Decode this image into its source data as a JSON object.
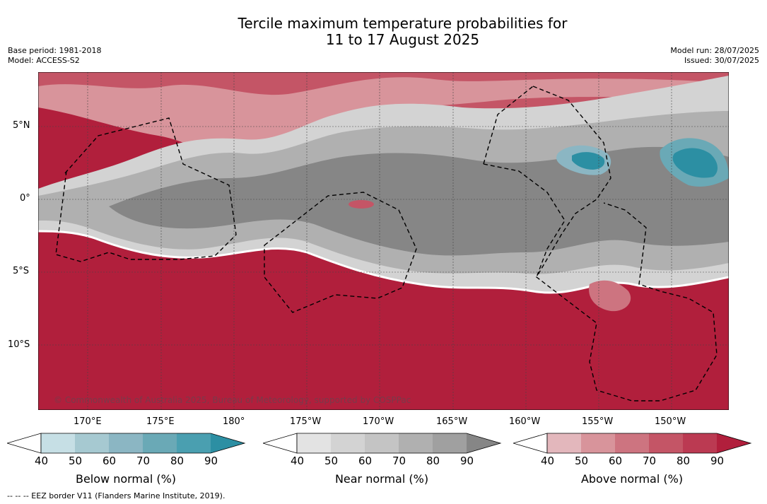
{
  "title": {
    "line1": "Tercile maximum temperature probabilities for",
    "line2": "11 to 17 August 2025"
  },
  "meta_left": {
    "base_period": "Base period: 1981-2018",
    "model": "Model: ACCESS-S2"
  },
  "meta_right": {
    "model_run": "Model run: 28/07/2025",
    "issued": "Issued: 30/07/2025"
  },
  "map": {
    "lat_ticks": [
      "5°N",
      "0°",
      "5°S",
      "10°S"
    ],
    "lon_ticks": [
      "170°E",
      "175°E",
      "180°",
      "175°W",
      "170°W",
      "165°W",
      "160°W",
      "155°W",
      "150°W"
    ],
    "copyright": "© Commonwealth of Australia 2025, Bureau of Meteorology, supported by COSPPac",
    "fill_colors": {
      "below": [
        "#c6dfe5",
        "#a6c9d1",
        "#8bb6c3",
        "#6aa9b6",
        "#4a9fb0",
        "#2c8fa3"
      ],
      "near": [
        "#e3e3e3",
        "#d3d3d3",
        "#c4c4c4",
        "#b0b0b0",
        "#a0a0a0",
        "#868686"
      ],
      "above": [
        "#e3b7bc",
        "#d8949b",
        "#cd7480",
        "#c45566",
        "#bb3a52",
        "#b11f3c"
      ]
    }
  },
  "colorbars": [
    {
      "id": "below",
      "label": "Below normal (%)",
      "ticks": [
        "40",
        "50",
        "60",
        "70",
        "80",
        "90"
      ]
    },
    {
      "id": "near",
      "label": "Near normal (%)",
      "ticks": [
        "40",
        "50",
        "60",
        "70",
        "80",
        "90"
      ]
    },
    {
      "id": "above",
      "label": "Above normal (%)",
      "ticks": [
        "40",
        "50",
        "60",
        "70",
        "80",
        "90"
      ]
    }
  ],
  "footer": "-- -- -- EEZ border V11 (Flanders Marine Institute, 2019)."
}
